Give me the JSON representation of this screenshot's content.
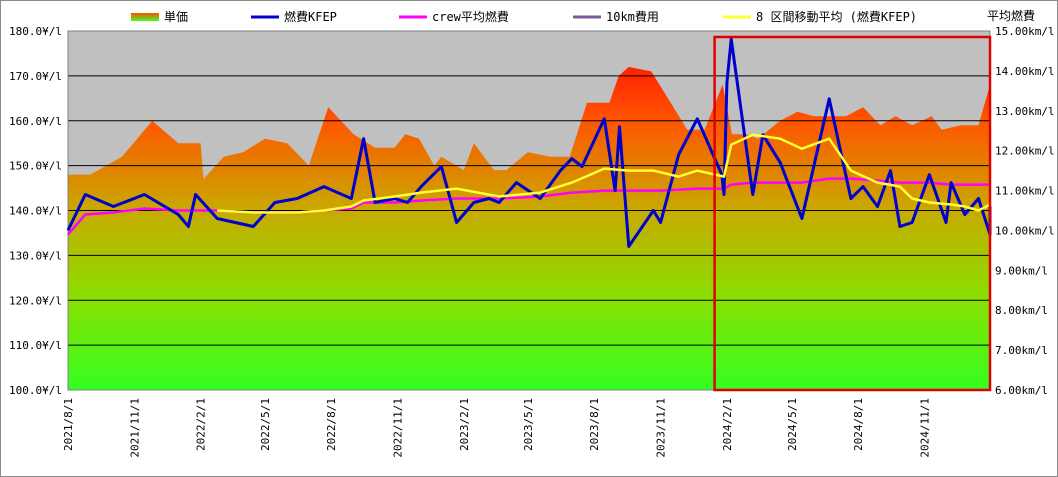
{
  "chart_data": {
    "type": "line",
    "left_axis": {
      "min": 100,
      "max": 180,
      "step": 10,
      "tick_labels": [
        "100.0¥/l",
        "110.0¥/l",
        "120.0¥/l",
        "130.0¥/l",
        "140.0¥/l",
        "150.0¥/l",
        "160.0¥/l",
        "170.0¥/l",
        "180.0¥/l"
      ]
    },
    "right_axis": {
      "title": "平均燃費",
      "min": 6,
      "max": 15,
      "step": 1,
      "tick_labels": [
        "6.00km/l",
        "7.00km/l",
        "8.00km/l",
        "9.00km/l",
        "10.00km/l",
        "11.00km/l",
        "12.00km/l",
        "13.00km/l",
        "14.00km/l",
        "15.00km/l"
      ]
    },
    "x_tick_labels": [
      "2021/8/1",
      "2021/11/1",
      "2022/2/1",
      "2022/5/1",
      "2022/8/1",
      "2022/11/1",
      "2023/2/1",
      "2023/5/1",
      "2023/8/1",
      "2023/11/1",
      "2024/2/1",
      "2024/5/1",
      "2024/8/1",
      "2024/11/1"
    ],
    "x_range": [
      "2021-08-01",
      "2025-01-31"
    ],
    "legend": [
      {
        "name": "単価",
        "kind": "area",
        "color": "#ff4d00"
      },
      {
        "name": "燃費KFEP",
        "kind": "line",
        "color": "#0000cc"
      },
      {
        "name": "crew平均燃費",
        "kind": "line",
        "color": "#ff00ff"
      },
      {
        "name": "10km費用",
        "kind": "line",
        "color": "#7b5a9a"
      },
      {
        "name": "8 区間移動平均 (燃費KFEP)",
        "kind": "line",
        "color": "#ffff33"
      }
    ],
    "unit_price_series": {
      "name": "単価",
      "axis": "left",
      "points": [
        [
          "2021-08-01",
          148
        ],
        [
          "2021-09-01",
          148
        ],
        [
          "2021-10-15",
          152
        ],
        [
          "2021-11-26",
          160
        ],
        [
          "2022-01-01",
          155
        ],
        [
          "2022-02-01",
          155
        ],
        [
          "2022-02-05",
          147
        ],
        [
          "2022-03-05",
          152
        ],
        [
          "2022-04-01",
          153
        ],
        [
          "2022-05-01",
          156
        ],
        [
          "2022-06-01",
          155
        ],
        [
          "2022-07-01",
          150
        ],
        [
          "2022-07-28",
          163
        ],
        [
          "2022-09-01",
          157
        ],
        [
          "2022-10-01",
          154
        ],
        [
          "2022-10-28",
          154
        ],
        [
          "2022-11-12",
          157
        ],
        [
          "2022-12-01",
          156
        ],
        [
          "2022-12-22",
          150
        ],
        [
          "2023-01-01",
          152
        ],
        [
          "2023-02-01",
          149
        ],
        [
          "2023-02-15",
          155
        ],
        [
          "2023-03-15",
          149
        ],
        [
          "2023-04-01",
          149
        ],
        [
          "2023-05-01",
          153
        ],
        [
          "2023-06-01",
          152
        ],
        [
          "2023-06-28",
          152
        ],
        [
          "2023-07-22",
          164
        ],
        [
          "2023-08-22",
          164
        ],
        [
          "2023-09-04",
          170
        ],
        [
          "2023-09-18",
          172
        ],
        [
          "2023-10-19",
          171
        ],
        [
          "2023-11-15",
          164
        ],
        [
          "2023-12-08",
          158
        ],
        [
          "2024-01-01",
          158
        ],
        [
          "2024-01-26",
          168
        ],
        [
          "2024-02-08",
          157
        ],
        [
          "2024-02-28",
          157
        ],
        [
          "2024-03-15",
          156
        ],
        [
          "2024-04-15",
          160
        ],
        [
          "2024-05-09",
          162
        ],
        [
          "2024-06-01",
          161
        ],
        [
          "2024-06-28",
          161
        ],
        [
          "2024-07-15",
          161
        ],
        [
          "2024-08-08",
          163
        ],
        [
          "2024-09-01",
          159
        ],
        [
          "2024-09-22",
          161
        ],
        [
          "2024-10-15",
          159
        ],
        [
          "2024-11-11",
          161
        ],
        [
          "2024-11-25",
          158
        ],
        [
          "2024-12-22",
          159
        ],
        [
          "2025-01-15",
          159
        ],
        [
          "2025-01-31",
          168
        ]
      ]
    },
    "series": [
      {
        "name": "燃費KFEP",
        "axis": "right",
        "points": [
          [
            "2021-08-01",
            10.0
          ],
          [
            "2021-08-25",
            10.9
          ],
          [
            "2021-10-03",
            10.6
          ],
          [
            "2021-11-15",
            10.9
          ],
          [
            "2022-01-01",
            10.4
          ],
          [
            "2022-01-15",
            10.1
          ],
          [
            "2022-01-25",
            10.9
          ],
          [
            "2022-02-24",
            10.3
          ],
          [
            "2022-04-15",
            10.1
          ],
          [
            "2022-05-15",
            10.7
          ],
          [
            "2022-06-15",
            10.8
          ],
          [
            "2022-07-22",
            11.1
          ],
          [
            "2022-08-29",
            10.8
          ],
          [
            "2022-09-15",
            12.3
          ],
          [
            "2022-10-01",
            10.7
          ],
          [
            "2022-10-28",
            10.8
          ],
          [
            "2022-11-15",
            10.7
          ],
          [
            "2022-12-04",
            11.1
          ],
          [
            "2023-01-01",
            11.6
          ],
          [
            "2023-01-22",
            10.2
          ],
          [
            "2023-02-15",
            10.7
          ],
          [
            "2023-03-08",
            10.8
          ],
          [
            "2023-03-22",
            10.7
          ],
          [
            "2023-04-15",
            11.2
          ],
          [
            "2023-05-18",
            10.8
          ],
          [
            "2023-06-15",
            11.5
          ],
          [
            "2023-07-01",
            11.8
          ],
          [
            "2023-07-15",
            11.6
          ],
          [
            "2023-08-15",
            12.8
          ],
          [
            "2023-08-30",
            11.0
          ],
          [
            "2023-09-05",
            12.6
          ],
          [
            "2023-09-18",
            9.6
          ],
          [
            "2023-10-22",
            10.5
          ],
          [
            "2023-11-01",
            10.2
          ],
          [
            "2023-11-26",
            11.9
          ],
          [
            "2023-12-22",
            12.8
          ],
          [
            "2024-01-25",
            11.4
          ],
          [
            "2024-01-28",
            10.9
          ],
          [
            "2024-02-01",
            13.7
          ],
          [
            "2024-02-07",
            14.8
          ],
          [
            "2024-03-08",
            10.9
          ],
          [
            "2024-03-22",
            12.4
          ],
          [
            "2024-04-15",
            11.7
          ],
          [
            "2024-05-15",
            10.3
          ],
          [
            "2024-06-22",
            13.3
          ],
          [
            "2024-07-22",
            10.8
          ],
          [
            "2024-08-08",
            11.1
          ],
          [
            "2024-08-28",
            10.6
          ],
          [
            "2024-09-15",
            11.5
          ],
          [
            "2024-09-28",
            10.1
          ],
          [
            "2024-10-15",
            10.2
          ],
          [
            "2024-11-08",
            11.4
          ],
          [
            "2024-12-01",
            10.2
          ],
          [
            "2024-12-08",
            11.2
          ],
          [
            "2024-12-27",
            10.4
          ],
          [
            "2025-01-15",
            10.8
          ],
          [
            "2025-01-31",
            9.9
          ],
          [
            "2025-01-31",
            10.6
          ]
        ]
      },
      {
        "name": "crew平均燃費",
        "axis": "right",
        "points": [
          [
            "2021-08-01",
            9.9
          ],
          [
            "2021-08-25",
            10.4
          ],
          [
            "2021-10-03",
            10.45
          ],
          [
            "2021-11-15",
            10.55
          ],
          [
            "2022-01-01",
            10.5
          ],
          [
            "2022-02-24",
            10.5
          ],
          [
            "2022-04-15",
            10.45
          ],
          [
            "2022-05-15",
            10.45
          ],
          [
            "2022-06-15",
            10.45
          ],
          [
            "2022-07-22",
            10.5
          ],
          [
            "2022-08-29",
            10.55
          ],
          [
            "2022-09-15",
            10.7
          ],
          [
            "2022-10-28",
            10.7
          ],
          [
            "2022-12-04",
            10.75
          ],
          [
            "2023-01-22",
            10.8
          ],
          [
            "2023-03-22",
            10.8
          ],
          [
            "2023-05-18",
            10.85
          ],
          [
            "2023-07-01",
            10.95
          ],
          [
            "2023-08-15",
            11.0
          ],
          [
            "2023-09-18",
            11.0
          ],
          [
            "2023-11-01",
            11.0
          ],
          [
            "2023-12-22",
            11.05
          ],
          [
            "2024-01-28",
            11.05
          ],
          [
            "2024-02-07",
            11.15
          ],
          [
            "2024-03-08",
            11.2
          ],
          [
            "2024-04-15",
            11.2
          ],
          [
            "2024-05-15",
            11.2
          ],
          [
            "2024-06-22",
            11.3
          ],
          [
            "2024-07-22",
            11.3
          ],
          [
            "2024-08-28",
            11.25
          ],
          [
            "2024-09-28",
            11.2
          ],
          [
            "2024-10-15",
            11.2
          ],
          [
            "2024-11-08",
            11.2
          ],
          [
            "2024-12-08",
            11.15
          ],
          [
            "2025-01-15",
            11.15
          ],
          [
            "2025-01-31",
            11.15
          ]
        ]
      },
      {
        "name": "8 区間移動平均 (燃費KFEP)",
        "axis": "right",
        "points": [
          [
            "2022-02-24",
            10.5
          ],
          [
            "2022-04-15",
            10.45
          ],
          [
            "2022-05-15",
            10.45
          ],
          [
            "2022-06-15",
            10.45
          ],
          [
            "2022-07-22",
            10.5
          ],
          [
            "2022-08-29",
            10.6
          ],
          [
            "2022-09-15",
            10.75
          ],
          [
            "2022-10-28",
            10.85
          ],
          [
            "2022-12-04",
            10.95
          ],
          [
            "2023-01-22",
            11.05
          ],
          [
            "2023-03-22",
            10.85
          ],
          [
            "2023-05-18",
            10.95
          ],
          [
            "2023-07-01",
            11.2
          ],
          [
            "2023-08-15",
            11.55
          ],
          [
            "2023-09-18",
            11.5
          ],
          [
            "2023-10-22",
            11.5
          ],
          [
            "2023-11-26",
            11.35
          ],
          [
            "2023-12-22",
            11.5
          ],
          [
            "2024-01-28",
            11.35
          ],
          [
            "2024-02-07",
            12.15
          ],
          [
            "2024-03-08",
            12.4
          ],
          [
            "2024-04-15",
            12.3
          ],
          [
            "2024-05-15",
            12.05
          ],
          [
            "2024-06-22",
            12.3
          ],
          [
            "2024-07-22",
            11.5
          ],
          [
            "2024-08-28",
            11.2
          ],
          [
            "2024-09-28",
            11.1
          ],
          [
            "2024-10-15",
            10.8
          ],
          [
            "2024-11-08",
            10.7
          ],
          [
            "2024-12-08",
            10.65
          ],
          [
            "2024-12-27",
            10.6
          ],
          [
            "2025-01-15",
            10.5
          ],
          [
            "2025-01-31",
            10.65
          ]
        ]
      }
    ],
    "highlight_box": {
      "from": "2024-01-15",
      "to": "2025-01-31",
      "color": "#e00000"
    },
    "grid": true,
    "legend_position": "top"
  }
}
